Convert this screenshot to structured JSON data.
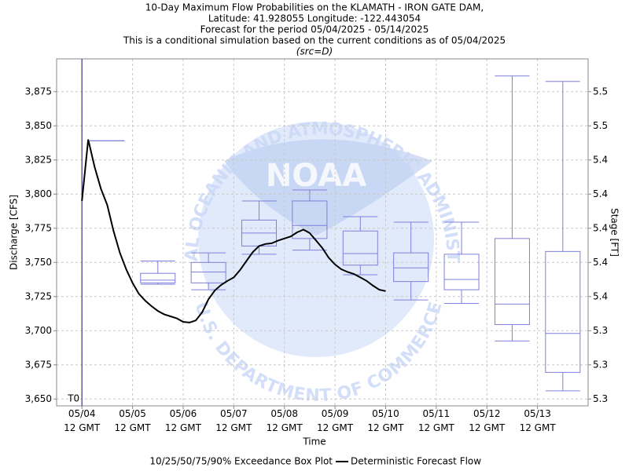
{
  "chart_data": {
    "type": "box",
    "title": [
      "10-Day Maximum Flow Probabilities on the KLAMATH - IRON GATE DAM,",
      "Latitude: 41.928055 Longitude: -122.443054",
      "Forecast for the period 05/04/2025 - 05/14/2025",
      "This is a conditional simulation based on the current conditions as of 05/04/2025"
    ],
    "subtitle": "(src=D)",
    "watermark": {
      "name": "NOAA",
      "top": "NATIONAL OCEANIC AND ATMOSPHERIC ADMINISTRATION",
      "bottom": "U.S. DEPARTMENT OF COMMERCE"
    },
    "x_label": "Time",
    "y_label": "Discharge [CFS]",
    "y2_label": "Stage [FT]",
    "xlim": [
      "05/04 00",
      "05/14 12"
    ],
    "xticks": [
      {
        "value": "05/04 12",
        "label": "05/04\n12 GMT"
      },
      {
        "value": "05/05 12",
        "label": "05/05\n12 GMT"
      },
      {
        "value": "05/06 12",
        "label": "05/06\n12 GMT"
      },
      {
        "value": "05/07 12",
        "label": "05/07\n12 GMT"
      },
      {
        "value": "05/08 12",
        "label": "05/08\n12 GMT"
      },
      {
        "value": "05/09 12",
        "label": "05/09\n12 GMT"
      },
      {
        "value": "05/10 12",
        "label": "05/10\n12 GMT"
      },
      {
        "value": "05/11 12",
        "label": "05/11\n12 GMT"
      },
      {
        "value": "05/12 12",
        "label": "05/12\n12 GMT"
      },
      {
        "value": "05/13 12",
        "label": "05/13\n12 GMT"
      }
    ],
    "ylim": [
      3645,
      3899
    ],
    "yticks": [
      {
        "value": 3650,
        "label": "3,650"
      },
      {
        "value": 3675,
        "label": "3,675"
      },
      {
        "value": 3700,
        "label": "3,700"
      },
      {
        "value": 3725,
        "label": "3,725"
      },
      {
        "value": 3750,
        "label": "3,750"
      },
      {
        "value": 3775,
        "label": "3,775"
      },
      {
        "value": 3800,
        "label": "3,800"
      },
      {
        "value": 3825,
        "label": "3,825"
      },
      {
        "value": 3850,
        "label": "3,850"
      },
      {
        "value": 3875,
        "label": "3,875"
      }
    ],
    "y2lim": [
      5.2864,
      5.4947
    ],
    "y2ticks": [
      {
        "value": 5.2905,
        "label": "5.3"
      },
      {
        "value": 5.311,
        "label": "5.3"
      },
      {
        "value": 5.3315,
        "label": "5.3"
      },
      {
        "value": 5.352,
        "label": "5.4"
      },
      {
        "value": 5.3725,
        "label": "5.4"
      },
      {
        "value": 5.393,
        "label": "5.4"
      },
      {
        "value": 5.4135,
        "label": "5.4"
      },
      {
        "value": 5.434,
        "label": "5.4"
      },
      {
        "value": 5.4545,
        "label": "5.5"
      },
      {
        "value": 5.475,
        "label": "5.5"
      }
    ],
    "grid": true,
    "t0": {
      "x": "05/04 12",
      "label": "T0"
    },
    "boxes": {
      "name": "10/25/50/75/90% Exceedance Box Plot",
      "color": "#7f7fdc",
      "x": [
        "05/05 00",
        "05/06 00",
        "05/07 00",
        "05/08 00",
        "05/09 00",
        "05/10 00",
        "05/11 00",
        "05/12 00",
        "05/13 00",
        "05/14 00"
      ],
      "values": [
        [
          3839,
          3839,
          3839,
          3839,
          3839
        ],
        [
          3734,
          3735,
          3737,
          3742,
          3751
        ],
        [
          3730,
          3735,
          3743,
          3750,
          3757
        ],
        [
          3756,
          3762,
          3771.5,
          3781,
          3795
        ],
        [
          3759,
          3767.5,
          3777,
          3795,
          3803
        ],
        [
          3741,
          3748,
          3756.5,
          3773,
          3783.5
        ],
        [
          3722.5,
          3736,
          3746,
          3757,
          3779.5
        ],
        [
          3720,
          3730,
          3737.5,
          3756,
          3779.5
        ],
        [
          3692.5,
          3704.5,
          3719.5,
          3767.5,
          3886.5
        ],
        [
          3656,
          3669.5,
          3698,
          3758,
          3882.5
        ]
      ]
    },
    "series": [
      {
        "name": "Deterministic Forecast Flow",
        "color": "#000000",
        "x": [
          "05/04 12",
          "05/04 15",
          "05/04 18",
          "05/04 21",
          "05/05 00",
          "05/05 03",
          "05/05 06",
          "05/05 09",
          "05/05 12",
          "05/05 15",
          "05/05 18",
          "05/05 21",
          "05/06 00",
          "05/06 03",
          "05/06 06",
          "05/06 09",
          "05/06 12",
          "05/06 15",
          "05/06 18",
          "05/06 21",
          "05/07 00",
          "05/07 03",
          "05/07 06",
          "05/07 09",
          "05/07 12",
          "05/07 15",
          "05/07 18",
          "05/07 21",
          "05/08 00",
          "05/08 03",
          "05/08 06",
          "05/08 09",
          "05/08 12",
          "05/08 15",
          "05/08 18",
          "05/08 21",
          "05/09 00",
          "05/09 03",
          "05/09 06",
          "05/09 09",
          "05/09 12",
          "05/09 15",
          "05/09 18",
          "05/09 21",
          "05/10 00",
          "05/10 03",
          "05/10 06",
          "05/10 09",
          "05/10 12"
        ],
        "values": [
          3795,
          3840,
          3820,
          3804,
          3792,
          3773,
          3757,
          3745,
          3735,
          3727,
          3722,
          3718,
          3714.5,
          3712,
          3710.5,
          3709,
          3706.5,
          3706,
          3707.5,
          3713.5,
          3723,
          3729.5,
          3733.5,
          3736.5,
          3739,
          3744.5,
          3751,
          3757.5,
          3762,
          3763.5,
          3764,
          3766,
          3767.5,
          3769,
          3772,
          3774,
          3771.5,
          3766,
          3760.5,
          3753.5,
          3748.5,
          3745,
          3743,
          3741.5,
          3739,
          3736.5,
          3733,
          3730,
          3729
        ]
      }
    ]
  }
}
